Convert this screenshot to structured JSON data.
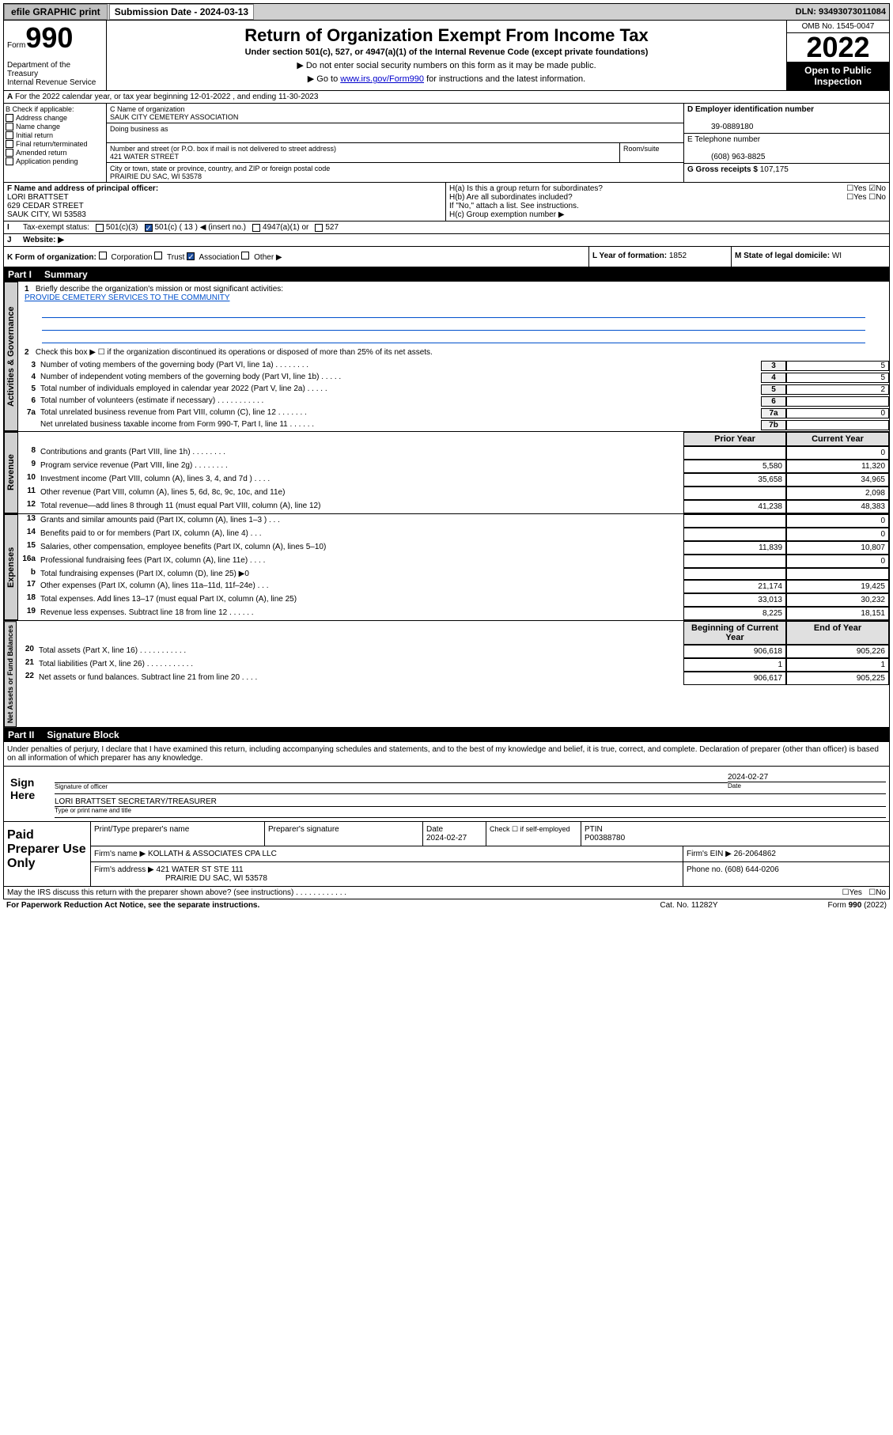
{
  "topbar": {
    "efile": "efile GRAPHIC print",
    "sub_label": "Submission Date - 2024-03-13",
    "dln": "DLN: 93493073011084"
  },
  "header": {
    "form_prefix": "Form",
    "form_num": "990",
    "title": "Return of Organization Exempt From Income Tax",
    "sub1": "Under section 501(c), 527, or 4947(a)(1) of the Internal Revenue Code (except private foundations)",
    "sub2": "▶ Do not enter social security numbers on this form as it may be made public.",
    "sub3_pre": "▶ Go to ",
    "sub3_link": "www.irs.gov/Form990",
    "sub3_post": " for instructions and the latest information.",
    "dept": "Department of the Treasury\nInternal Revenue Service",
    "omb": "OMB No. 1545-0047",
    "year": "2022",
    "inspect": "Open to Public Inspection"
  },
  "a_line": "For the 2022 calendar year, or tax year beginning 12-01-2022    , and ending 11-30-2023",
  "b": {
    "hdr": "B Check if applicable:",
    "opts": [
      "Address change",
      "Name change",
      "Initial return",
      "Final return/terminated",
      "Amended return",
      "Application pending"
    ]
  },
  "c": {
    "name_label": "C Name of organization",
    "name": "SAUK CITY CEMETERY ASSOCIATION",
    "dba_label": "Doing business as",
    "addr_label": "Number and street (or P.O. box if mail is not delivered to street address)",
    "room_label": "Room/suite",
    "addr": "421 WATER STREET",
    "city_label": "City or town, state or province, country, and ZIP or foreign postal code",
    "city": "PRAIRIE DU SAC, WI  53578"
  },
  "d": {
    "label": "D Employer identification number",
    "val": "39-0889180"
  },
  "e": {
    "label": "E Telephone number",
    "val": "(608) 963-8825"
  },
  "g": {
    "label": "G Gross receipts $",
    "val": "107,175"
  },
  "f": {
    "label": "F  Name and address of principal officer:",
    "name": "LORI BRATTSET",
    "addr1": "629 CEDAR STREET",
    "addr2": "SAUK CITY, WI  53583"
  },
  "h": {
    "a": "H(a)  Is this a group return for subordinates?",
    "b": "H(b)  Are all subordinates included?",
    "instr": "If \"No,\" attach a list. See instructions.",
    "c": "H(c)  Group exemption number ▶"
  },
  "i": {
    "label": "Tax-exempt status:",
    "opt1": "501(c)(3)",
    "opt2": "501(c) ( 13 ) ◀ (insert no.)",
    "opt3": "4947(a)(1) or",
    "opt4": "527"
  },
  "j": {
    "label": "Website: ▶"
  },
  "k": {
    "label": "K Form of organization:",
    "opts": [
      "Corporation",
      "Trust",
      "Association",
      "Other ▶"
    ],
    "checked": 2
  },
  "l": {
    "label": "L Year of formation:",
    "val": "1852"
  },
  "m": {
    "label": "M State of legal domicile:",
    "val": "WI"
  },
  "part1": {
    "hdr": "Part I",
    "title": "Summary",
    "q1": "Briefly describe the organization's mission or most significant activities:",
    "mission": "PROVIDE CEMETERY SERVICES TO THE COMMUNITY",
    "q2": "Check this box ▶ ☐  if the organization discontinued its operations or disposed of more than 25% of its net assets.",
    "rows_gov": [
      {
        "n": "3",
        "d": "Number of voting members of the governing body (Part VI, line 1a)  .   .   .   .   .   .   .   .",
        "box": "3",
        "v": "5"
      },
      {
        "n": "4",
        "d": "Number of independent voting members of the governing body (Part VI, line 1b)  .   .   .   .   .",
        "box": "4",
        "v": "5"
      },
      {
        "n": "5",
        "d": "Total number of individuals employed in calendar year 2022 (Part V, line 2a)  .   .   .   .   .",
        "box": "5",
        "v": "2"
      },
      {
        "n": "6",
        "d": "Total number of volunteers (estimate if necessary)  .   .   .   .   .   .   .   .   .   .   .",
        "box": "6",
        "v": ""
      },
      {
        "n": "7a",
        "d": "Total unrelated business revenue from Part VIII, column (C), line 12  .   .   .   .   .   .   .",
        "box": "7a",
        "v": "0"
      },
      {
        "n": "",
        "d": "Net unrelated business taxable income from Form 990-T, Part I, line 11  .   .   .   .   .   .",
        "box": "7b",
        "v": ""
      }
    ],
    "col_hdr": {
      "prior": "Prior Year",
      "current": "Current Year"
    },
    "rev_rows": [
      {
        "n": "8",
        "d": "Contributions and grants (Part VIII, line 1h)  .   .   .   .   .   .   .   .",
        "v1": "",
        "v2": "0"
      },
      {
        "n": "9",
        "d": "Program service revenue (Part VIII, line 2g)  .   .   .   .   .   .   .   .",
        "v1": "5,580",
        "v2": "11,320"
      },
      {
        "n": "10",
        "d": "Investment income (Part VIII, column (A), lines 3, 4, and 7d )  .   .   .   .",
        "v1": "35,658",
        "v2": "34,965"
      },
      {
        "n": "11",
        "d": "Other revenue (Part VIII, column (A), lines 5, 6d, 8c, 9c, 10c, and 11e)",
        "v1": "",
        "v2": "2,098"
      },
      {
        "n": "12",
        "d": "Total revenue—add lines 8 through 11 (must equal Part VIII, column (A), line 12)",
        "v1": "41,238",
        "v2": "48,383"
      }
    ],
    "exp_rows": [
      {
        "n": "13",
        "d": "Grants and similar amounts paid (Part IX, column (A), lines 1–3 )  .   .   .",
        "v1": "",
        "v2": "0"
      },
      {
        "n": "14",
        "d": "Benefits paid to or for members (Part IX, column (A), line 4)  .   .   .",
        "v1": "",
        "v2": "0"
      },
      {
        "n": "15",
        "d": "Salaries, other compensation, employee benefits (Part IX, column (A), lines 5–10)",
        "v1": "11,839",
        "v2": "10,807"
      },
      {
        "n": "16a",
        "d": "Professional fundraising fees (Part IX, column (A), line 11e)  .   .   .   .",
        "v1": "",
        "v2": "0"
      },
      {
        "n": "b",
        "d": "Total fundraising expenses (Part IX, column (D), line 25) ▶0",
        "v1": "",
        "v2": ""
      },
      {
        "n": "17",
        "d": "Other expenses (Part IX, column (A), lines 11a–11d, 11f–24e)  .   .   .",
        "v1": "21,174",
        "v2": "19,425"
      },
      {
        "n": "18",
        "d": "Total expenses. Add lines 13–17 (must equal Part IX, column (A), line 25)",
        "v1": "33,013",
        "v2": "30,232"
      },
      {
        "n": "19",
        "d": "Revenue less expenses. Subtract line 18 from line 12  .   .   .   .   .   .",
        "v1": "8,225",
        "v2": "18,151"
      }
    ],
    "net_hdr": {
      "begin": "Beginning of Current Year",
      "end": "End of Year"
    },
    "net_rows": [
      {
        "n": "20",
        "d": "Total assets (Part X, line 16)  .   .   .   .   .   .   .   .   .   .   .",
        "v1": "906,618",
        "v2": "905,226"
      },
      {
        "n": "21",
        "d": "Total liabilities (Part X, line 26)  .   .   .   .   .   .   .   .   .   .   .",
        "v1": "1",
        "v2": "1"
      },
      {
        "n": "22",
        "d": "Net assets or fund balances. Subtract line 21 from line 20  .   .   .   .",
        "v1": "906,617",
        "v2": "905,225"
      }
    ]
  },
  "part2": {
    "hdr": "Part II",
    "title": "Signature Block",
    "decl": "Under penalties of perjury, I declare that I have examined this return, including accompanying schedules and statements, and to the best of my knowledge and belief, it is true, correct, and complete. Declaration of preparer (other than officer) is based on all information of which preparer has any knowledge.",
    "sign_here": "Sign Here",
    "sig_officer": "Signature of officer",
    "date_label": "Date",
    "date": "2024-02-27",
    "name_title": "LORI BRATTSET  SECRETARY/TREASURER",
    "name_label": "Type or print name and title"
  },
  "prep": {
    "hdr": "Paid Preparer Use Only",
    "cols": [
      "Print/Type preparer's name",
      "Preparer's signature",
      "Date",
      "",
      "PTIN"
    ],
    "date": "2024-02-27",
    "check_label": "Check ☐ if self-employed",
    "ptin": "P00388780",
    "firm_name_label": "Firm's name      ▶",
    "firm_name": "KOLLATH & ASSOCIATES CPA LLC",
    "firm_ein_label": "Firm's EIN ▶",
    "firm_ein": "26-2064862",
    "firm_addr_label": "Firm's address ▶",
    "firm_addr1": "421 WATER ST STE 111",
    "firm_addr2": "PRAIRIE DU SAC, WI  53578",
    "phone_label": "Phone no.",
    "phone": "(608) 644-0206"
  },
  "discuss": "May the IRS discuss this return with the preparer shown above? (see instructions)   .   .   .   .   .   .   .   .   .   .   .   .",
  "footer": {
    "left": "For Paperwork Reduction Act Notice, see the separate instructions.",
    "mid": "Cat. No. 11282Y",
    "right": "Form 990 (2022)"
  },
  "vtabs": {
    "gov": "Activities & Governance",
    "rev": "Revenue",
    "exp": "Expenses",
    "net": "Net Assets or Fund Balances"
  }
}
